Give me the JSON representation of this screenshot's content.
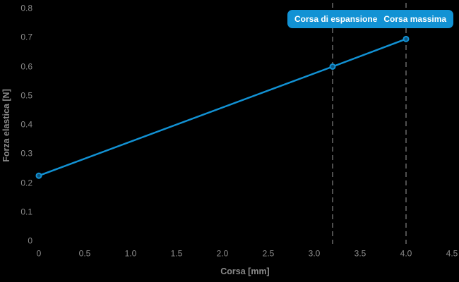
{
  "figure": {
    "background": "#000000",
    "accent": "#1292d4",
    "marker_fill": "#0c5580",
    "guide_color": "#4f4f4f",
    "text_color": "#8a8a8a",
    "badge_text_color": "#ffffff"
  },
  "chart_data": {
    "type": "line",
    "title": "",
    "xlabel": "Corsa [mm]",
    "ylabel": "Forza elastica [N]",
    "xlim": [
      0,
      4.5
    ],
    "ylim": [
      0,
      0.8
    ],
    "grid": false,
    "legend_position": "top-right",
    "x_ticks": [
      {
        "value": 0,
        "label": "0"
      },
      {
        "value": 0.5,
        "label": "0.5"
      },
      {
        "value": 1.0,
        "label": "1.0"
      },
      {
        "value": 1.5,
        "label": "1.5"
      },
      {
        "value": 2.0,
        "label": "2.0"
      },
      {
        "value": 2.5,
        "label": "2.5"
      },
      {
        "value": 3.0,
        "label": "3.0"
      },
      {
        "value": 3.5,
        "label": "3.5"
      },
      {
        "value": 4.0,
        "label": "4.0"
      },
      {
        "value": 4.5,
        "label": "4.5"
      }
    ],
    "y_ticks": [
      {
        "value": 0,
        "label": "0"
      },
      {
        "value": 0.1,
        "label": "0.1"
      },
      {
        "value": 0.2,
        "label": "0.2"
      },
      {
        "value": 0.3,
        "label": "0.3"
      },
      {
        "value": 0.4,
        "label": "0.4"
      },
      {
        "value": 0.5,
        "label": "0.5"
      },
      {
        "value": 0.6,
        "label": "0.6"
      },
      {
        "value": 0.7,
        "label": "0.7"
      },
      {
        "value": 0.8,
        "label": "0.8"
      }
    ],
    "series": [
      {
        "name": "Forza elastica",
        "points": [
          {
            "x": 0,
            "y": 0.225
          },
          {
            "x": 3.2,
            "y": 0.6
          },
          {
            "x": 4.0,
            "y": 0.695
          }
        ]
      }
    ],
    "annotations": {
      "vlines": [
        {
          "x": 3.2,
          "label": "Corsa di espansione"
        },
        {
          "x": 4.0,
          "label": "Corsa massima"
        }
      ]
    }
  }
}
